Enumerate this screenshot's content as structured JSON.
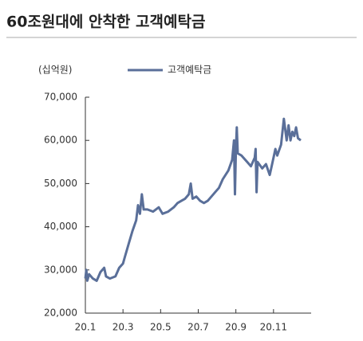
{
  "chart_data": {
    "type": "line",
    "title": "60조원대에 안착한 고객예탁금",
    "unit_label": "(십억원)",
    "x": [
      1.0,
      1.05,
      1.1,
      1.2,
      1.4,
      1.6,
      1.8,
      2.0,
      2.1,
      2.3,
      2.6,
      2.8,
      3.0,
      3.1,
      3.3,
      3.5,
      3.7,
      3.8,
      3.9,
      4.0,
      4.1,
      4.3,
      4.6,
      4.9,
      5.1,
      5.4,
      5.7,
      5.9,
      6.1,
      6.3,
      6.5,
      6.6,
      6.7,
      6.9,
      7.1,
      7.3,
      7.5,
      7.7,
      7.9,
      8.1,
      8.3,
      8.6,
      8.8,
      8.9,
      8.95,
      9.0,
      9.05,
      9.1,
      9.3,
      9.6,
      9.8,
      10.0,
      10.05,
      10.1,
      10.15,
      10.4,
      10.6,
      10.8,
      10.9,
      11.1,
      11.2,
      11.4,
      11.55,
      11.7,
      11.8,
      11.9,
      12.0,
      12.1,
      12.2,
      12.3,
      12.45
    ],
    "series": [
      {
        "name": "고객예탁금",
        "color": "#5a6f99",
        "values": [
          28000,
          30000,
          27500,
          29000,
          28000,
          27500,
          29500,
          30500,
          28500,
          28000,
          28500,
          30500,
          31500,
          33000,
          36000,
          39000,
          41500,
          45000,
          43000,
          47500,
          44000,
          44000,
          43500,
          44500,
          43000,
          43500,
          44500,
          45500,
          46000,
          46500,
          47500,
          50000,
          46500,
          47000,
          46000,
          45500,
          46000,
          47000,
          48000,
          49000,
          51000,
          53000,
          55500,
          60000,
          47500,
          58000,
          63000,
          57000,
          56500,
          55000,
          54000,
          56000,
          58000,
          48000,
          55000,
          53500,
          54500,
          52000,
          54000,
          58000,
          56500,
          59000,
          65000,
          60000,
          63500,
          60000,
          62000,
          61000,
          63000,
          60500,
          60000
        ]
      }
    ],
    "xlim": [
      1,
      13
    ],
    "xticks": [
      {
        "value": 1,
        "label": "20.1"
      },
      {
        "value": 3,
        "label": "20.3"
      },
      {
        "value": 5,
        "label": "20.5"
      },
      {
        "value": 7,
        "label": "20.7"
      },
      {
        "value": 9,
        "label": "20.9"
      },
      {
        "value": 11,
        "label": "20.11"
      }
    ],
    "ylim": [
      20000,
      70000
    ],
    "yticks": [
      {
        "value": 20000,
        "label": "20,000"
      },
      {
        "value": 30000,
        "label": "30,000"
      },
      {
        "value": 40000,
        "label": "40,000"
      },
      {
        "value": 50000,
        "label": "50,000"
      },
      {
        "value": 60000,
        "label": "60,000"
      },
      {
        "value": 70000,
        "label": "70,000"
      }
    ]
  }
}
